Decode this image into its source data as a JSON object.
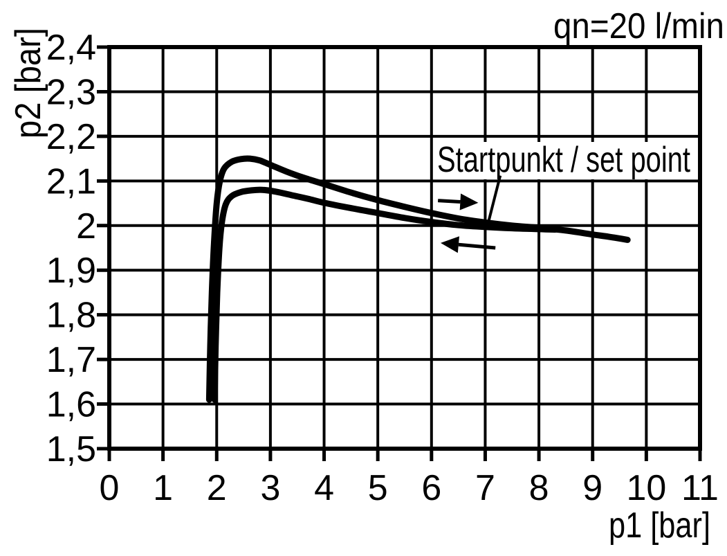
{
  "chart_data": {
    "type": "line",
    "title": "qn=20 l/min",
    "xlabel": "p1 [bar]",
    "ylabel": "p2 [bar]",
    "xlim": [
      0,
      11
    ],
    "ylim": [
      1.5,
      2.4
    ],
    "grid": true,
    "background": "#ffffff",
    "line_color": "#000000",
    "x_ticks": [
      {
        "v": 0,
        "label": "0"
      },
      {
        "v": 1,
        "label": "1"
      },
      {
        "v": 2,
        "label": "2"
      },
      {
        "v": 3,
        "label": "3"
      },
      {
        "v": 4,
        "label": "4"
      },
      {
        "v": 5,
        "label": "5"
      },
      {
        "v": 6,
        "label": "6"
      },
      {
        "v": 7,
        "label": "7"
      },
      {
        "v": 8,
        "label": "8"
      },
      {
        "v": 9,
        "label": "9"
      },
      {
        "v": 10,
        "label": "10"
      },
      {
        "v": 11,
        "label": "11"
      }
    ],
    "y_ticks": [
      {
        "v": 2.4,
        "label": "2,4"
      },
      {
        "v": 2.3,
        "label": "2,3"
      },
      {
        "v": 2.2,
        "label": "2,2"
      },
      {
        "v": 2.1,
        "label": "2,1"
      },
      {
        "v": 2.0,
        "label": "2"
      },
      {
        "v": 1.9,
        "label": "1,9"
      },
      {
        "v": 1.8,
        "label": "1,8"
      },
      {
        "v": 1.7,
        "label": "1,7"
      },
      {
        "v": 1.6,
        "label": "1,6"
      },
      {
        "v": 1.5,
        "label": "1,5"
      }
    ],
    "series": [
      {
        "name": "upper_branch",
        "points": [
          [
            1.86,
            1.61
          ],
          [
            1.88,
            1.73
          ],
          [
            1.91,
            1.85
          ],
          [
            1.95,
            1.96
          ],
          [
            2.0,
            2.05
          ],
          [
            2.06,
            2.1
          ],
          [
            2.14,
            2.128
          ],
          [
            2.28,
            2.143
          ],
          [
            2.45,
            2.149
          ],
          [
            2.62,
            2.15
          ],
          [
            2.8,
            2.146
          ],
          [
            3.0,
            2.136
          ],
          [
            3.3,
            2.121
          ],
          [
            3.6,
            2.108
          ],
          [
            4.0,
            2.093
          ],
          [
            4.5,
            2.074
          ],
          [
            5.0,
            2.057
          ],
          [
            5.5,
            2.042
          ],
          [
            6.0,
            2.028
          ],
          [
            6.5,
            2.016
          ],
          [
            7.0,
            2.007
          ],
          [
            7.5,
            2.0
          ],
          [
            8.0,
            1.995
          ],
          [
            8.5,
            1.989
          ],
          [
            9.0,
            1.98
          ],
          [
            9.3,
            1.975
          ],
          [
            9.65,
            1.968
          ]
        ]
      },
      {
        "name": "lower_branch",
        "points": [
          [
            1.96,
            1.61
          ],
          [
            1.98,
            1.73
          ],
          [
            2.01,
            1.85
          ],
          [
            2.05,
            1.95
          ],
          [
            2.1,
            2.01
          ],
          [
            2.17,
            2.048
          ],
          [
            2.28,
            2.066
          ],
          [
            2.45,
            2.075
          ],
          [
            2.65,
            2.079
          ],
          [
            2.85,
            2.08
          ],
          [
            3.1,
            2.076
          ],
          [
            3.4,
            2.068
          ],
          [
            3.7,
            2.06
          ],
          [
            4.0,
            2.051
          ],
          [
            4.5,
            2.039
          ],
          [
            5.0,
            2.028
          ],
          [
            5.5,
            2.017
          ],
          [
            6.0,
            2.008
          ],
          [
            6.5,
            2.001
          ],
          [
            7.0,
            1.997
          ],
          [
            7.5,
            1.994
          ],
          [
            8.0,
            1.992
          ],
          [
            8.3,
            1.991
          ]
        ]
      }
    ],
    "annotation": {
      "label": "Startpunkt / set point",
      "callout_from": [
        7.28,
        2.112
      ],
      "callout_to": [
        7.06,
        2.008
      ],
      "arrows": [
        {
          "name": "flow-right-arrow",
          "tail": [
            6.12,
            2.056
          ],
          "tip": [
            6.87,
            2.051
          ]
        },
        {
          "name": "flow-left-arrow",
          "tail": [
            7.19,
            1.95
          ],
          "tip": [
            6.17,
            1.961
          ]
        }
      ]
    }
  }
}
